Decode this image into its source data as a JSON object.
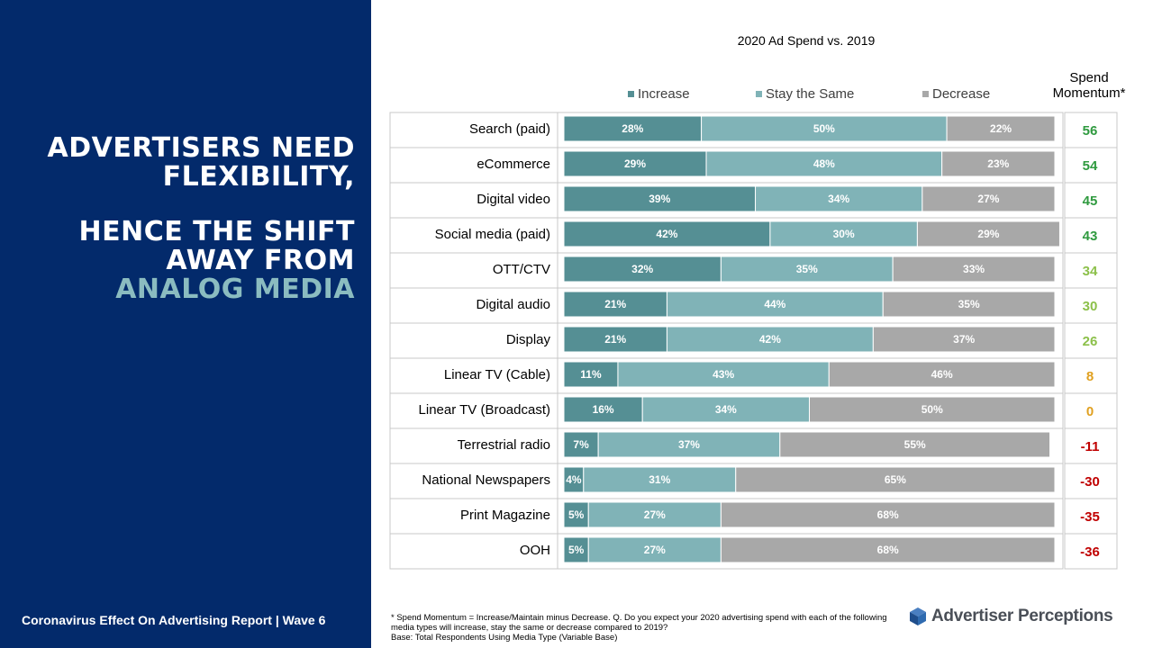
{
  "headline": {
    "line1": "ADVERTISERS NEED",
    "line2": "FLEXIBILITY,",
    "line3": "HENCE THE SHIFT",
    "line4": "AWAY FROM",
    "line5": "ANALOG MEDIA"
  },
  "footer": {
    "report": "Coronavirus Effect On Advertising Report  |  Wave 6",
    "note1": "* Spend Momentum  = Increase/Maintain minus Decrease.  Q. Do you expect your 2020 advertising spend with each of the following media types will increase, stay the same or decrease compared to 2019?",
    "note2": "Base: Total Respondents Using Media Type (Variable Base)"
  },
  "brand": {
    "name": "Advertiser Perceptions",
    "icon": "cube-logo-icon"
  },
  "colors": {
    "sidebar": "#032a6b",
    "increase": "#558f94",
    "stay": "#80b3b7",
    "decrease": "#a8a8a8",
    "momentum_high": "#2f9a3f",
    "momentum_mid": "#8cc04a",
    "momentum_low": "#e0a020",
    "momentum_negative": "#c00000"
  },
  "chart_data": {
    "type": "bar",
    "orientation": "horizontal",
    "stacked": true,
    "percent_stacked": true,
    "title": "2020 Ad Spend vs. 2019",
    "momentum_label": "Spend\nMomentum*",
    "categories": [
      "Search (paid)",
      "eCommerce",
      "Digital video",
      "Social media (paid)",
      "OTT/CTV",
      "Digital audio",
      "Display",
      "Linear TV (Cable)",
      "Linear TV (Broadcast)",
      "Terrestrial radio",
      "National Newspapers",
      "Print Magazine",
      "OOH"
    ],
    "series": [
      {
        "name": "Increase",
        "values": [
          28,
          29,
          39,
          42,
          32,
          21,
          21,
          11,
          16,
          7,
          4,
          5,
          5
        ]
      },
      {
        "name": "Stay the Same",
        "values": [
          50,
          48,
          34,
          30,
          35,
          44,
          42,
          43,
          34,
          37,
          31,
          27,
          27
        ]
      },
      {
        "name": "Decrease",
        "values": [
          22,
          23,
          27,
          29,
          33,
          35,
          37,
          46,
          50,
          55,
          65,
          68,
          68
        ]
      }
    ],
    "spend_momentum": [
      56,
      54,
      45,
      43,
      34,
      30,
      26,
      8,
      0,
      -11,
      -30,
      -35,
      -36
    ],
    "legend_position": "top"
  }
}
